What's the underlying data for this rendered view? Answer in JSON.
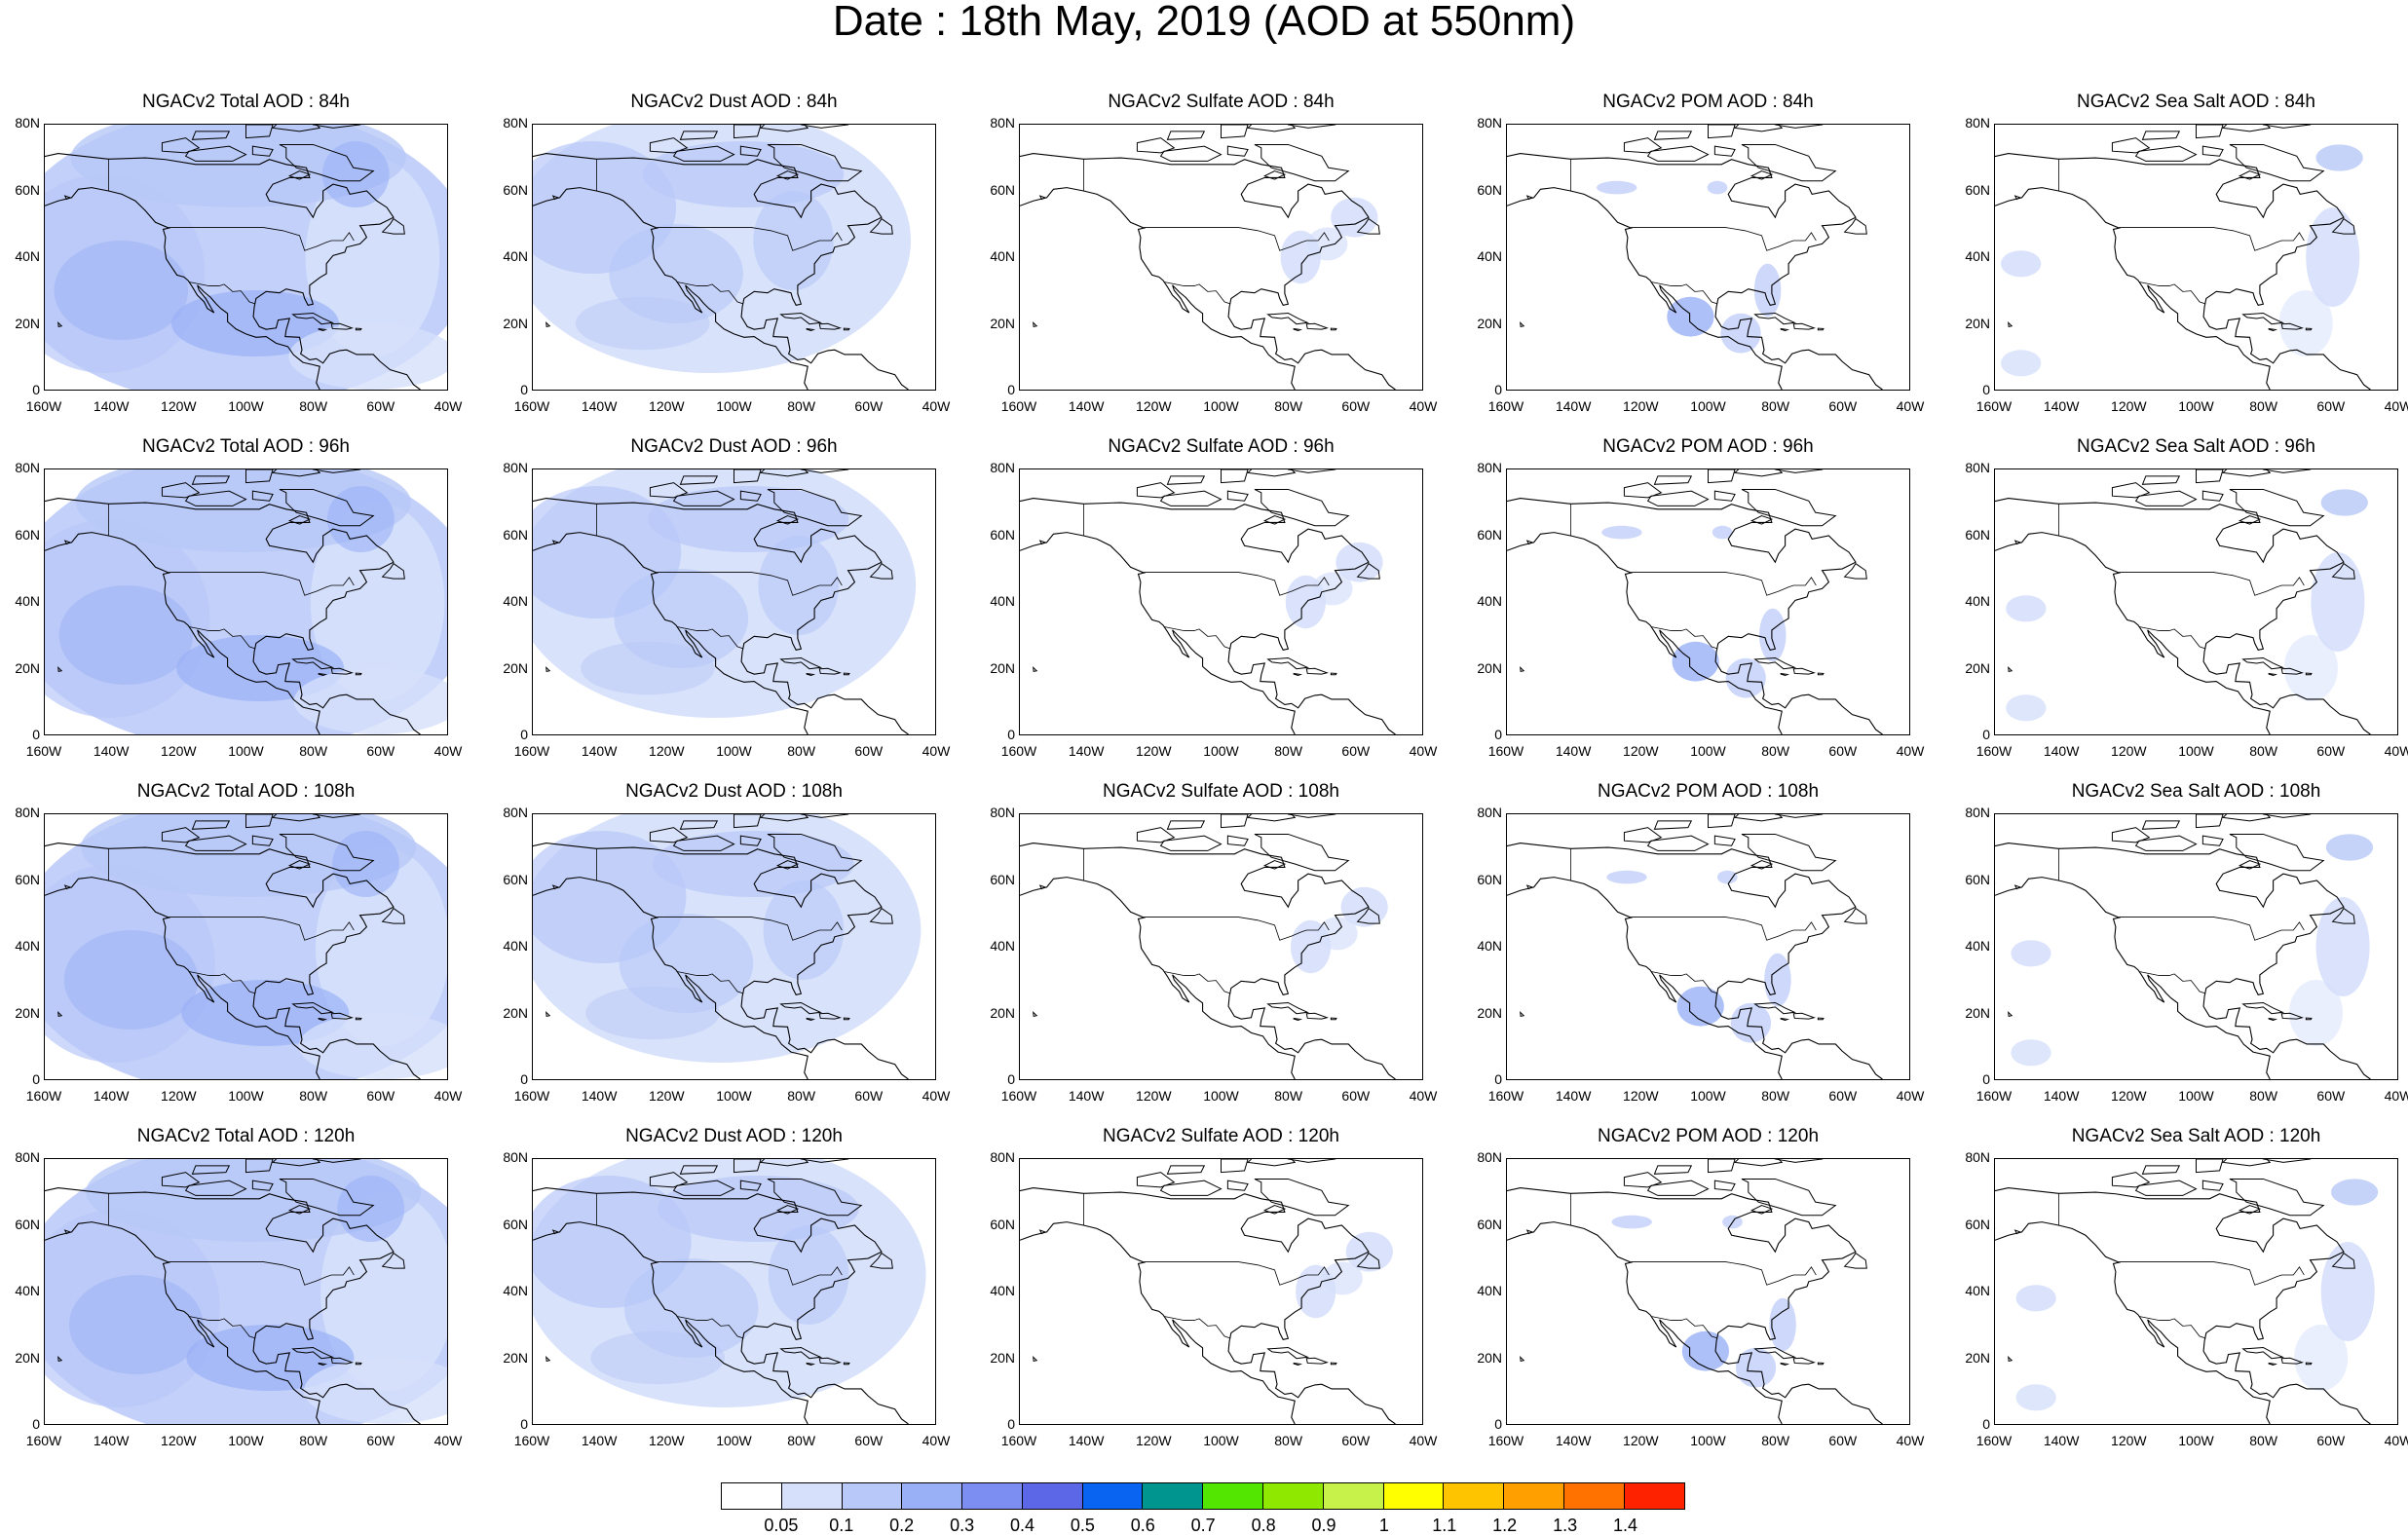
{
  "title": "Date : 18th May, 2019 (AOD at 550nm)",
  "axes": {
    "y_ticks": [
      "80N",
      "60N",
      "40N",
      "20N",
      "0"
    ],
    "x_ticks": [
      "160W",
      "140W",
      "120W",
      "100W",
      "80W",
      "60W",
      "40W"
    ]
  },
  "panels": [
    [
      "NGACv2 Total AOD : 84h",
      "NGACv2 Dust AOD : 84h",
      "NGACv2 Sulfate AOD : 84h",
      "NGACv2 POM AOD : 84h",
      "NGACv2 Sea Salt AOD : 84h"
    ],
    [
      "NGACv2 Total AOD : 96h",
      "NGACv2 Dust AOD : 96h",
      "NGACv2 Sulfate AOD : 96h",
      "NGACv2 POM AOD : 96h",
      "NGACv2 Sea Salt AOD : 96h"
    ],
    [
      "NGACv2 Total AOD : 108h",
      "NGACv2 Dust AOD : 108h",
      "NGACv2 Sulfate AOD : 108h",
      "NGACv2 POM AOD : 108h",
      "NGACv2 Sea Salt AOD : 108h"
    ],
    [
      "NGACv2 Total AOD : 120h",
      "NGACv2 Dust AOD : 120h",
      "NGACv2 Sulfate AOD : 120h",
      "NGACv2 POM AOD : 120h",
      "NGACv2 Sea Salt  AOD : 120h"
    ]
  ],
  "colorbar": {
    "colors": [
      "#ffffff",
      "#d6e0fb",
      "#b8c8f8",
      "#9ab0f6",
      "#7d8ef3",
      "#5c67e8",
      "#0a64f2",
      "#00958f",
      "#52e600",
      "#8fe800",
      "#c6f24a",
      "#ffff00",
      "#ffc400",
      "#ff9f00",
      "#ff7200",
      "#ff2200"
    ],
    "labels": [
      "0.05",
      "0.1",
      "0.2",
      "0.3",
      "0.4",
      "0.5",
      "0.6",
      "0.7",
      "0.8",
      "0.9",
      "1",
      "1.1",
      "1.2",
      "1.3",
      "1.4"
    ]
  }
}
